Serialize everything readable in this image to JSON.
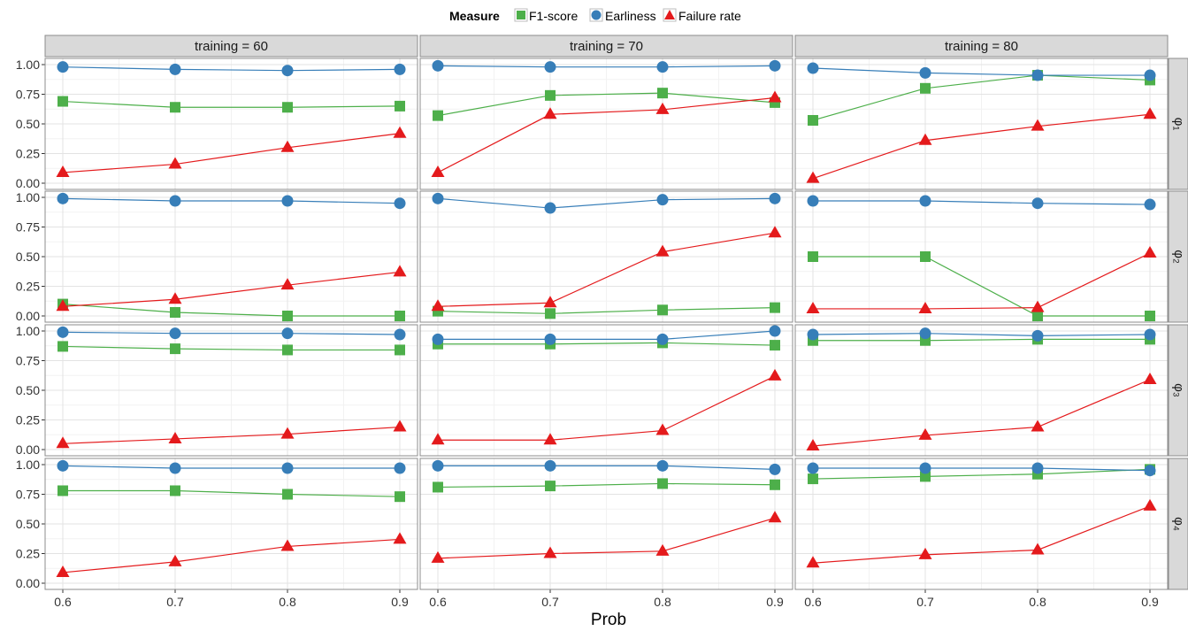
{
  "chart_data": {
    "type": "line",
    "facet_grid": true,
    "xlabel": "Prob",
    "ylabel": "",
    "x": [
      0.6,
      0.7,
      0.8,
      0.9
    ],
    "x_ticks": [
      "0.6",
      "0.7",
      "0.8",
      "0.9"
    ],
    "y_ticks": [
      "0.00",
      "0.25",
      "0.50",
      "0.75",
      "1.00"
    ],
    "ylim": [
      0,
      1
    ],
    "grid": true,
    "legend": {
      "title": "Measure",
      "placement": "top",
      "entries": [
        {
          "name": "F1-score",
          "color": "#4DAF4A",
          "marker": "square"
        },
        {
          "name": "Earliness",
          "color": "#377EB8",
          "marker": "circle"
        },
        {
          "name": "Failure rate",
          "color": "#E41A1C",
          "marker": "triangle"
        }
      ]
    },
    "columns": [
      "training = 60",
      "training = 70",
      "training = 80"
    ],
    "rows": [
      "φ₁",
      "φ₂",
      "φ₃",
      "φ₄"
    ],
    "panels": [
      {
        "col": 0,
        "row": 0,
        "series": [
          {
            "name": "F1-score",
            "values": [
              0.69,
              0.64,
              0.64,
              0.65
            ]
          },
          {
            "name": "Earliness",
            "values": [
              0.98,
              0.96,
              0.95,
              0.96
            ]
          },
          {
            "name": "Failure rate",
            "values": [
              0.09,
              0.16,
              0.3,
              0.42
            ]
          }
        ]
      },
      {
        "col": 1,
        "row": 0,
        "series": [
          {
            "name": "F1-score",
            "values": [
              0.57,
              0.74,
              0.76,
              0.68
            ]
          },
          {
            "name": "Earliness",
            "values": [
              0.99,
              0.98,
              0.98,
              0.99
            ]
          },
          {
            "name": "Failure rate",
            "values": [
              0.09,
              0.58,
              0.62,
              0.72
            ]
          }
        ]
      },
      {
        "col": 2,
        "row": 0,
        "series": [
          {
            "name": "F1-score",
            "values": [
              0.53,
              0.8,
              0.91,
              0.87
            ]
          },
          {
            "name": "Earliness",
            "values": [
              0.97,
              0.93,
              0.91,
              0.91
            ]
          },
          {
            "name": "Failure rate",
            "values": [
              0.04,
              0.36,
              0.48,
              0.58
            ]
          }
        ]
      },
      {
        "col": 0,
        "row": 1,
        "series": [
          {
            "name": "F1-score",
            "values": [
              0.1,
              0.03,
              0.0,
              0.0
            ]
          },
          {
            "name": "Earliness",
            "values": [
              0.99,
              0.97,
              0.97,
              0.95
            ]
          },
          {
            "name": "Failure rate",
            "values": [
              0.08,
              0.14,
              0.26,
              0.37
            ]
          }
        ]
      },
      {
        "col": 1,
        "row": 1,
        "series": [
          {
            "name": "F1-score",
            "values": [
              0.04,
              0.02,
              0.05,
              0.07
            ]
          },
          {
            "name": "Earliness",
            "values": [
              0.99,
              0.91,
              0.98,
              0.99
            ]
          },
          {
            "name": "Failure rate",
            "values": [
              0.08,
              0.11,
              0.54,
              0.7
            ]
          }
        ]
      },
      {
        "col": 2,
        "row": 1,
        "series": [
          {
            "name": "F1-score",
            "values": [
              0.5,
              0.5,
              0.0,
              0.0
            ]
          },
          {
            "name": "Earliness",
            "values": [
              0.97,
              0.97,
              0.95,
              0.94
            ]
          },
          {
            "name": "Failure rate",
            "values": [
              0.06,
              0.06,
              0.07,
              0.53
            ]
          }
        ]
      },
      {
        "col": 0,
        "row": 2,
        "series": [
          {
            "name": "F1-score",
            "values": [
              0.87,
              0.85,
              0.84,
              0.84
            ]
          },
          {
            "name": "Earliness",
            "values": [
              0.99,
              0.98,
              0.98,
              0.97
            ]
          },
          {
            "name": "Failure rate",
            "values": [
              0.05,
              0.09,
              0.13,
              0.19
            ]
          }
        ]
      },
      {
        "col": 1,
        "row": 2,
        "series": [
          {
            "name": "F1-score",
            "values": [
              0.89,
              0.89,
              0.9,
              0.88
            ]
          },
          {
            "name": "Earliness",
            "values": [
              0.93,
              0.93,
              0.93,
              1.0
            ]
          },
          {
            "name": "Failure rate",
            "values": [
              0.08,
              0.08,
              0.16,
              0.62
            ]
          }
        ]
      },
      {
        "col": 2,
        "row": 2,
        "series": [
          {
            "name": "F1-score",
            "values": [
              0.92,
              0.92,
              0.93,
              0.93
            ]
          },
          {
            "name": "Earliness",
            "values": [
              0.97,
              0.98,
              0.96,
              0.97
            ]
          },
          {
            "name": "Failure rate",
            "values": [
              0.03,
              0.12,
              0.19,
              0.59
            ]
          }
        ]
      },
      {
        "col": 0,
        "row": 3,
        "series": [
          {
            "name": "F1-score",
            "values": [
              0.78,
              0.78,
              0.75,
              0.73
            ]
          },
          {
            "name": "Earliness",
            "values": [
              0.99,
              0.97,
              0.97,
              0.97
            ]
          },
          {
            "name": "Failure rate",
            "values": [
              0.09,
              0.18,
              0.31,
              0.37
            ]
          }
        ]
      },
      {
        "col": 1,
        "row": 3,
        "series": [
          {
            "name": "F1-score",
            "values": [
              0.81,
              0.82,
              0.84,
              0.83
            ]
          },
          {
            "name": "Earliness",
            "values": [
              0.99,
              0.99,
              0.99,
              0.96
            ]
          },
          {
            "name": "Failure rate",
            "values": [
              0.21,
              0.25,
              0.27,
              0.55
            ]
          }
        ]
      },
      {
        "col": 2,
        "row": 3,
        "series": [
          {
            "name": "F1-score",
            "values": [
              0.88,
              0.9,
              0.92,
              0.96
            ]
          },
          {
            "name": "Earliness",
            "values": [
              0.97,
              0.97,
              0.97,
              0.95
            ]
          },
          {
            "name": "Failure rate",
            "values": [
              0.17,
              0.24,
              0.28,
              0.65
            ]
          }
        ]
      }
    ]
  }
}
